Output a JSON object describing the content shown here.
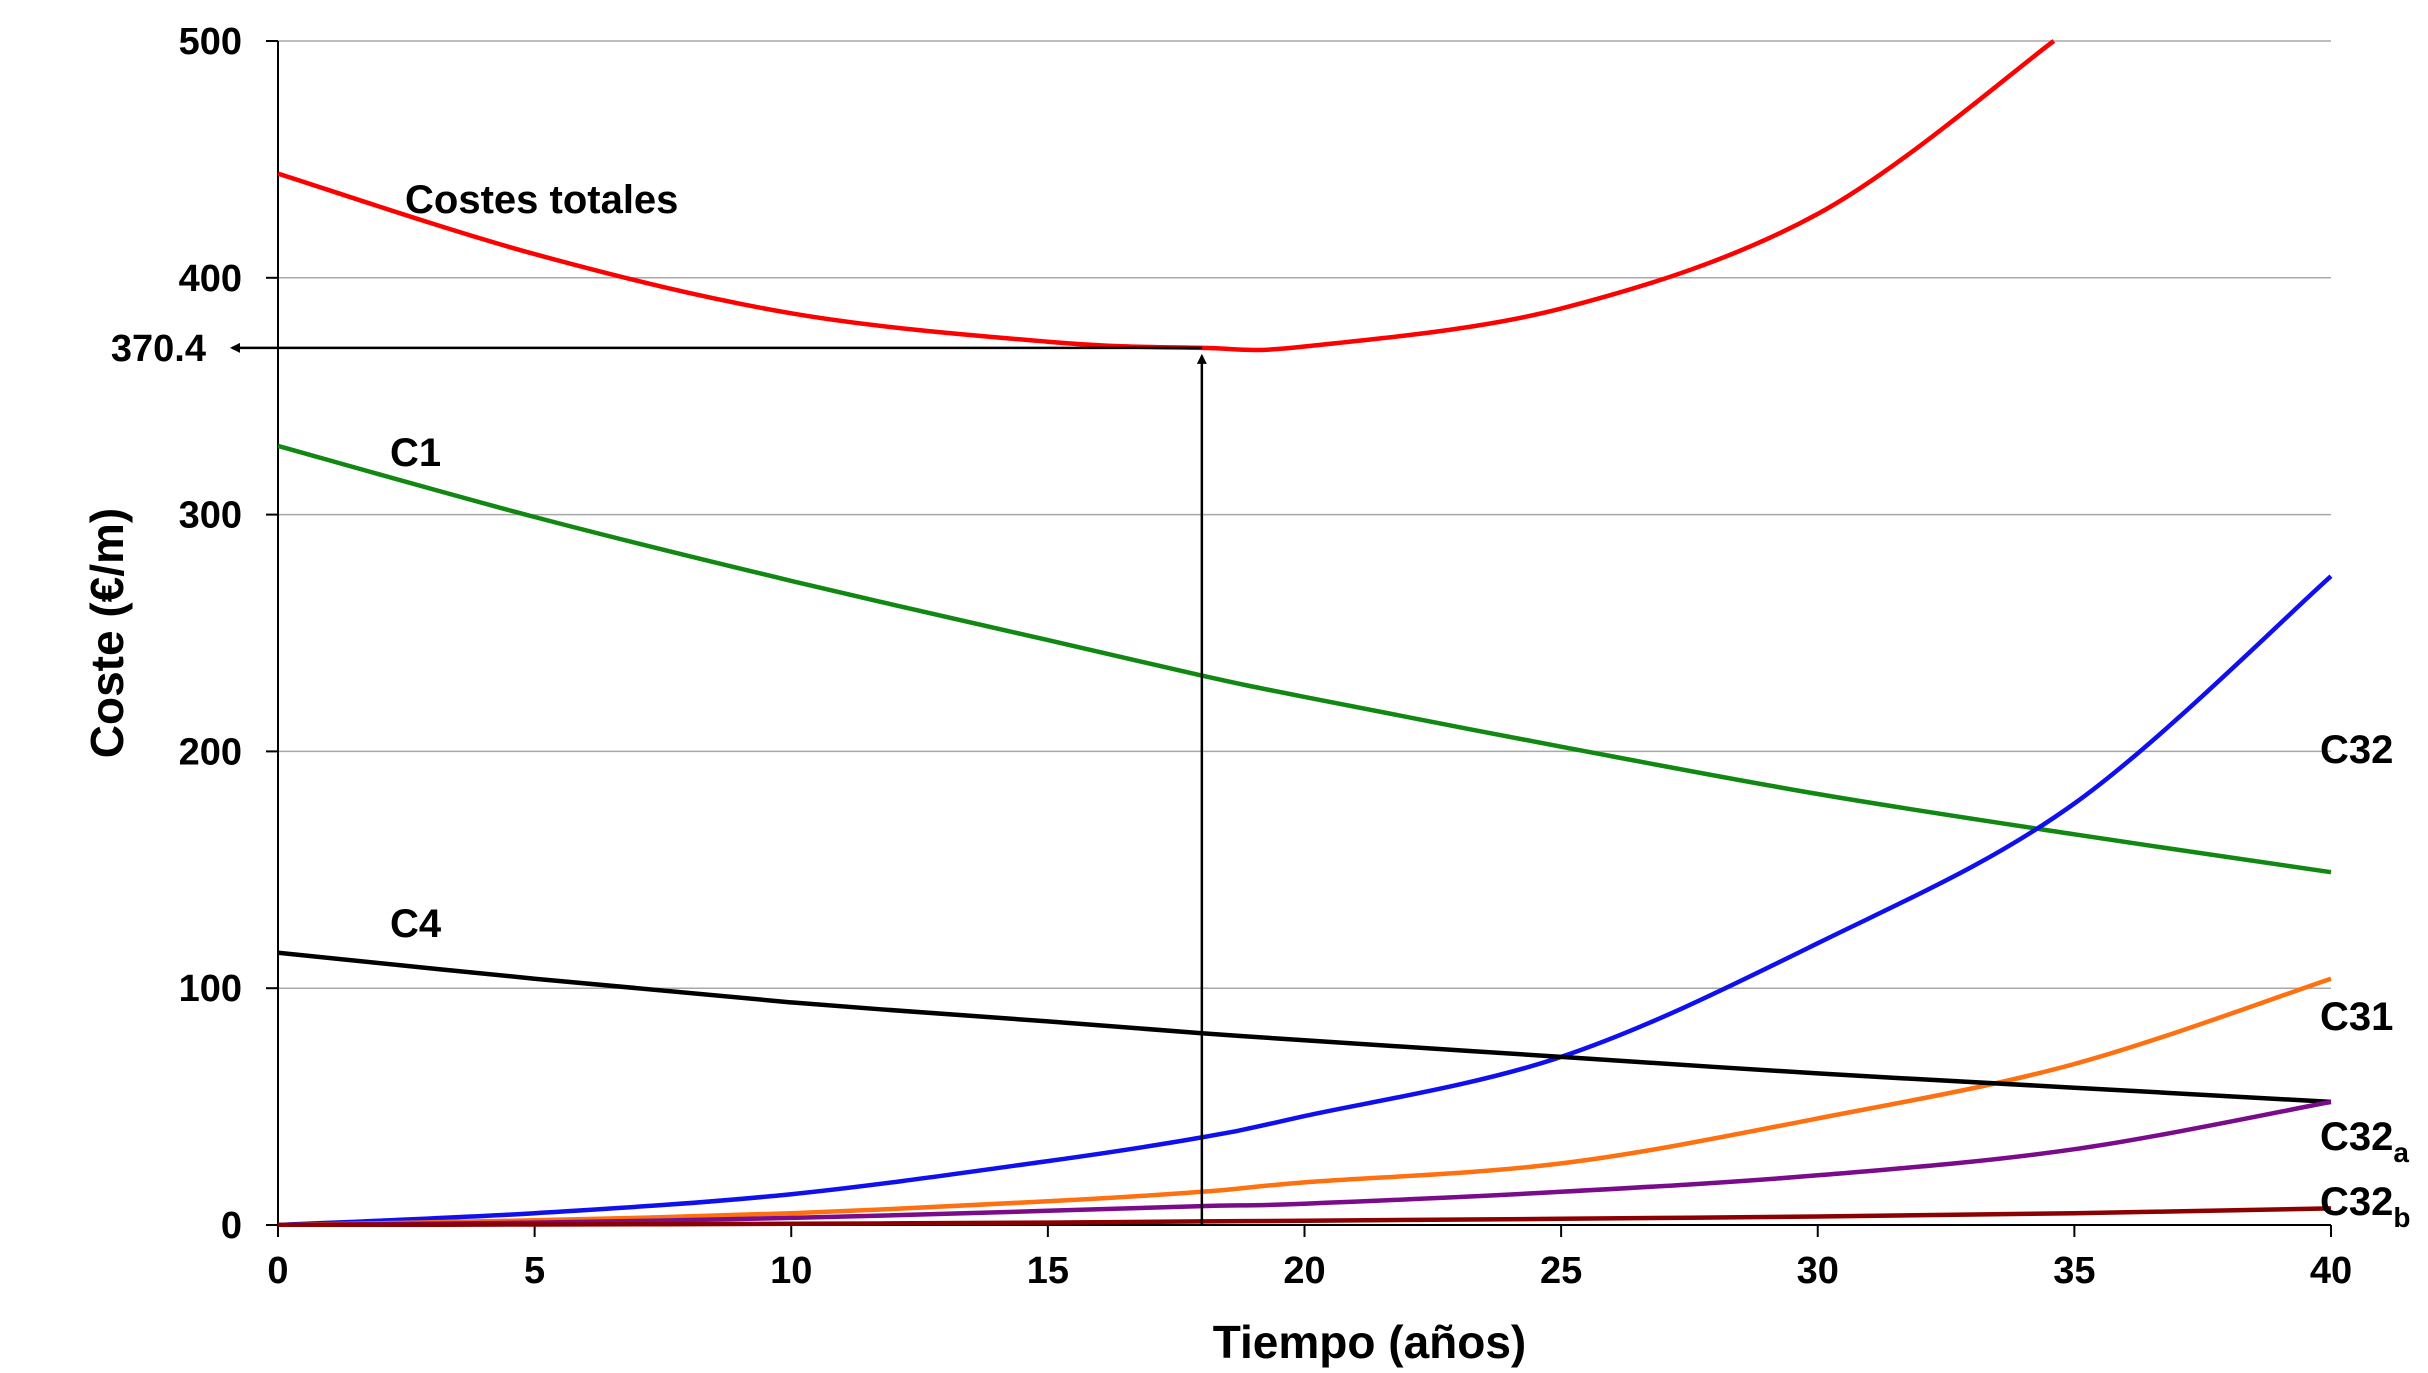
{
  "chart_data": {
    "type": "line",
    "title": "",
    "xlabel": "Tiempo (años)",
    "ylabel": "Coste (€/m)",
    "xlim": [
      0,
      40
    ],
    "ylim": [
      0,
      500
    ],
    "xticks": [
      0,
      5,
      10,
      15,
      20,
      25,
      30,
      35,
      40
    ],
    "yticks": [
      0,
      100,
      200,
      300,
      400,
      500
    ],
    "grid": "horizontal",
    "legend": "none",
    "x": [
      0,
      5,
      10,
      15,
      18,
      20,
      25,
      30,
      35,
      40
    ],
    "series": [
      {
        "name": "Costes totales",
        "color": "#ff0000",
        "values": [
          444,
          410,
          385,
          373,
          370.4,
          371,
          387,
          427,
          485,
          500
        ]
      },
      {
        "name": "C1",
        "color": "#118811",
        "values": [
          329,
          299,
          272,
          247,
          232,
          223,
          202,
          182,
          165,
          149
        ]
      },
      {
        "name": "C32",
        "color": "#1010ee",
        "values": [
          0,
          5,
          13,
          27,
          37,
          46,
          71,
          119,
          178,
          274
        ]
      },
      {
        "name": "C31",
        "color": "#ff7010",
        "values": [
          0,
          2,
          5,
          10,
          14,
          18,
          26,
          45,
          68,
          104
        ]
      },
      {
        "name": "C4",
        "color": "#000000",
        "values": [
          115,
          104,
          94,
          86,
          81,
          78,
          71,
          64,
          58,
          52
        ]
      },
      {
        "name": "C32",
        "sub": "a",
        "color": "#7a0b8a",
        "values": [
          0,
          1,
          3,
          6,
          8,
          9,
          14,
          21,
          32,
          52
        ]
      },
      {
        "name": "C32",
        "sub": "b",
        "color": "#8b0000",
        "values": [
          0,
          0.2,
          0.5,
          1,
          1.5,
          1.8,
          2.6,
          3.6,
          5,
          7
        ]
      }
    ],
    "annotations": [
      {
        "text": "370.4",
        "x": 18,
        "y": 370.4
      }
    ]
  }
}
